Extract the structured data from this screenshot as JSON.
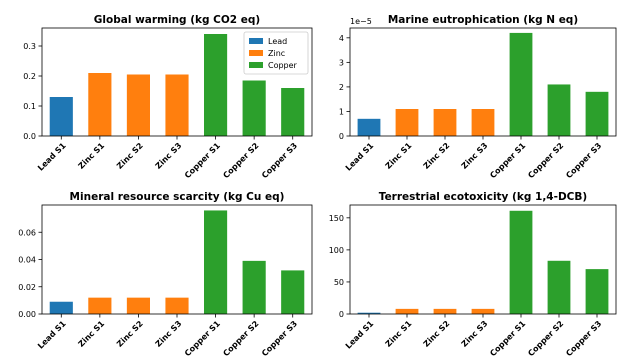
{
  "colors": {
    "Lead": "#1f77b4",
    "Zinc": "#ff7f0e",
    "Copper": "#2ca02c"
  },
  "legend": {
    "placement": "top-right",
    "panel": 0,
    "entries": [
      {
        "label": "Lead",
        "color": "#1f77b4"
      },
      {
        "label": "Zinc",
        "color": "#ff7f0e"
      },
      {
        "label": "Copper",
        "color": "#2ca02c"
      }
    ]
  },
  "chart_data": [
    {
      "type": "bar",
      "title": "Global warming (kg CO2 eq)",
      "categories": [
        "Lead S1",
        "Zinc S1",
        "Zinc S2",
        "Zinc S3",
        "Copper S1",
        "Copper S2",
        "Copper S3"
      ],
      "groups": [
        "Lead",
        "Zinc",
        "Zinc",
        "Zinc",
        "Copper",
        "Copper",
        "Copper"
      ],
      "values": [
        0.13,
        0.21,
        0.205,
        0.205,
        0.34,
        0.185,
        0.16
      ],
      "ylim": [
        0,
        0.36
      ],
      "yticks": [
        0.0,
        0.1,
        0.2,
        0.3
      ],
      "ytick_labels": [
        "0.0",
        "0.1",
        "0.2",
        "0.3"
      ],
      "offset_text": "",
      "grid": false
    },
    {
      "type": "bar",
      "title": "Marine eutrophication (kg N eq)",
      "categories": [
        "Lead S1",
        "Zinc S1",
        "Zinc S2",
        "Zinc S3",
        "Copper S1",
        "Copper S2",
        "Copper S3"
      ],
      "groups": [
        "Lead",
        "Zinc",
        "Zinc",
        "Zinc",
        "Copper",
        "Copper",
        "Copper"
      ],
      "values": [
        7e-06,
        1.1e-05,
        1.1e-05,
        1.1e-05,
        4.2e-05,
        2.1e-05,
        1.8e-05
      ],
      "ylim": [
        0,
        4.4e-05
      ],
      "yticks": [
        0,
        1e-05,
        2e-05,
        3e-05,
        4e-05
      ],
      "ytick_labels": [
        "0",
        "1",
        "2",
        "3",
        "4"
      ],
      "offset_text": "1e−5",
      "grid": false
    },
    {
      "type": "bar",
      "title": "Mineral resource scarcity (kg Cu eq)",
      "categories": [
        "Lead S1",
        "Zinc S1",
        "Zinc S2",
        "Zinc S3",
        "Copper S1",
        "Copper S2",
        "Copper S3"
      ],
      "groups": [
        "Lead",
        "Zinc",
        "Zinc",
        "Zinc",
        "Copper",
        "Copper",
        "Copper"
      ],
      "values": [
        0.009,
        0.012,
        0.012,
        0.012,
        0.076,
        0.039,
        0.032
      ],
      "ylim": [
        0,
        0.08
      ],
      "yticks": [
        0.0,
        0.02,
        0.04,
        0.06
      ],
      "ytick_labels": [
        "0.00",
        "0.02",
        "0.04",
        "0.06"
      ],
      "offset_text": "",
      "grid": false
    },
    {
      "type": "bar",
      "title": "Terrestrial ecotoxicity (kg 1,4-DCB)",
      "categories": [
        "Lead S1",
        "Zinc S1",
        "Zinc S2",
        "Zinc S3",
        "Copper S1",
        "Copper S2",
        "Copper S3"
      ],
      "groups": [
        "Lead",
        "Zinc",
        "Zinc",
        "Zinc",
        "Copper",
        "Copper",
        "Copper"
      ],
      "values": [
        2,
        8,
        8,
        8,
        161,
        83,
        70
      ],
      "ylim": [
        0,
        170
      ],
      "yticks": [
        0,
        50,
        100,
        150
      ],
      "ytick_labels": [
        "0",
        "50",
        "100",
        "150"
      ],
      "offset_text": "",
      "grid": false
    }
  ]
}
